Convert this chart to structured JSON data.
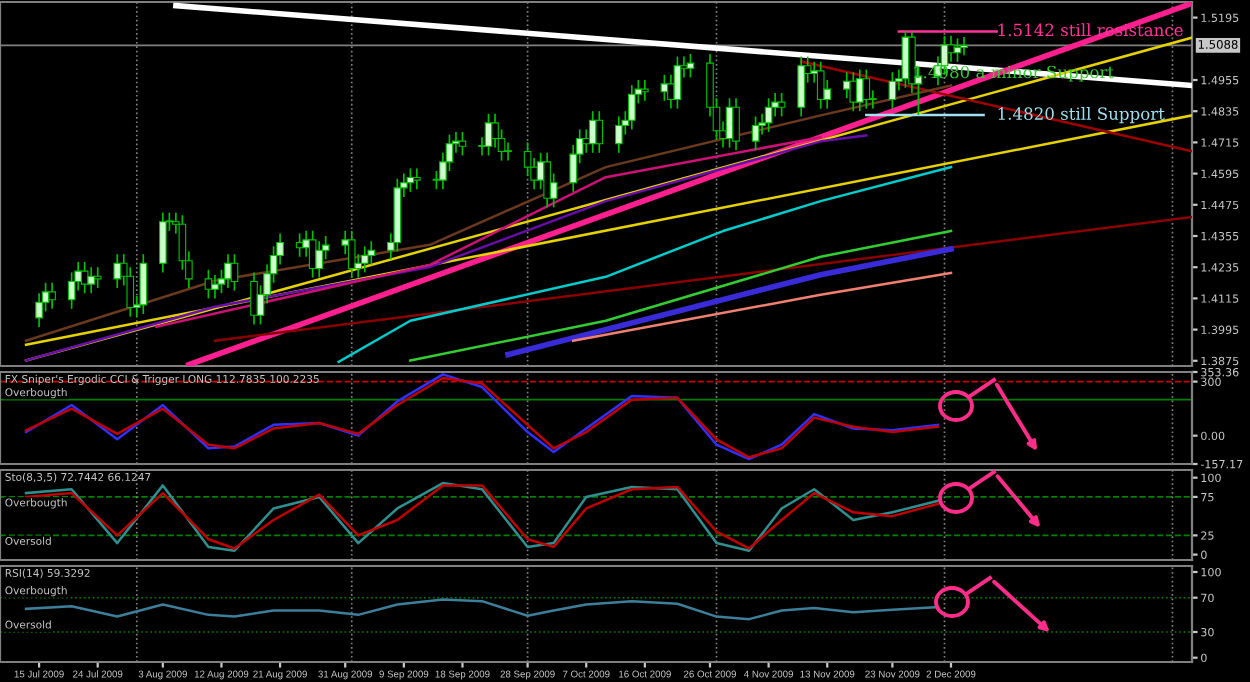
{
  "chart_data": [
    {
      "type": "candlestick",
      "xlim": [
        "2009-07-09",
        "2010-01-08"
      ],
      "ylim": [
        1.3855,
        1.5255
      ],
      "tick_labels": "y",
      "yticks": [
        1.3875,
        1.3995,
        1.4115,
        1.4235,
        1.4355,
        1.4475,
        1.4595,
        1.4715,
        1.4835,
        1.4955,
        1.5195
      ],
      "color": "#00c000",
      "x": [
        "2009-07-15",
        "2009-07-16",
        "2009-07-17",
        "2009-07-20",
        "2009-07-21",
        "2009-07-22",
        "2009-07-23",
        "2009-07-24",
        "2009-07-27",
        "2009-07-28",
        "2009-07-29",
        "2009-07-30",
        "2009-07-31",
        "2009-08-03",
        "2009-08-04",
        "2009-08-05",
        "2009-08-06",
        "2009-08-07",
        "2009-08-10",
        "2009-08-11",
        "2009-08-12",
        "2009-08-13",
        "2009-08-14",
        "2009-08-17",
        "2009-08-18",
        "2009-08-19",
        "2009-08-20",
        "2009-08-21",
        "2009-08-24",
        "2009-08-25",
        "2009-08-26",
        "2009-08-27",
        "2009-08-28",
        "2009-08-31",
        "2009-09-01",
        "2009-09-02",
        "2009-09-03",
        "2009-09-04",
        "2009-09-07",
        "2009-09-08",
        "2009-09-09",
        "2009-09-10",
        "2009-09-11",
        "2009-09-14",
        "2009-09-15",
        "2009-09-16",
        "2009-09-17",
        "2009-09-18",
        "2009-09-21",
        "2009-09-22",
        "2009-09-23",
        "2009-09-24",
        "2009-09-25",
        "2009-09-28",
        "2009-09-29",
        "2009-09-30",
        "2009-10-01",
        "2009-10-02",
        "2009-10-05",
        "2009-10-06",
        "2009-10-07",
        "2009-10-08",
        "2009-10-09",
        "2009-10-12",
        "2009-10-13",
        "2009-10-14",
        "2009-10-15",
        "2009-10-16",
        "2009-10-19",
        "2009-10-20",
        "2009-10-21",
        "2009-10-22",
        "2009-10-23",
        "2009-10-26",
        "2009-10-27",
        "2009-10-28",
        "2009-10-29",
        "2009-10-30",
        "2009-11-02",
        "2009-11-03",
        "2009-11-04",
        "2009-11-05",
        "2009-11-06",
        "2009-11-09",
        "2009-11-10",
        "2009-11-11",
        "2009-11-12",
        "2009-11-13",
        "2009-11-16",
        "2009-11-17",
        "2009-11-18",
        "2009-11-19",
        "2009-11-20",
        "2009-11-23",
        "2009-11-24",
        "2009-11-25",
        "2009-11-26",
        "2009-11-27",
        "2009-11-30",
        "2009-12-01",
        "2009-12-02",
        "2009-12-03",
        "2009-12-04"
      ],
      "ohlc": [
        [
          1.404,
          1.4135,
          1.4005,
          1.41
        ],
        [
          1.41,
          1.4175,
          1.4065,
          1.414
        ],
        [
          1.414,
          1.4175,
          1.4075,
          1.411
        ],
        [
          1.411,
          1.4215,
          1.4075,
          1.418
        ],
        [
          1.418,
          1.4255,
          1.4145,
          1.422
        ],
        [
          1.422,
          1.4255,
          1.4135,
          1.417
        ],
        [
          1.417,
          1.4235,
          1.4135,
          1.42
        ],
        [
          1.42,
          1.4235,
          1.4155,
          1.419
        ],
        [
          1.419,
          1.4285,
          1.4155,
          1.425
        ],
        [
          1.425,
          1.4285,
          1.4165,
          1.42
        ],
        [
          1.42,
          1.4235,
          1.4045,
          1.408
        ],
        [
          1.408,
          1.4125,
          1.4045,
          1.409
        ],
        [
          1.409,
          1.4285,
          1.4055,
          1.425
        ],
        [
          1.425,
          1.4445,
          1.4215,
          1.441
        ],
        [
          1.441,
          1.4445,
          1.4375,
          1.441
        ],
        [
          1.441,
          1.4445,
          1.4365,
          1.44
        ],
        [
          1.44,
          1.4435,
          1.4225,
          1.426
        ],
        [
          1.426,
          1.4295,
          1.4155,
          1.419
        ],
        [
          1.419,
          1.4225,
          1.4115,
          1.415
        ],
        [
          1.415,
          1.4205,
          1.4115,
          1.417
        ],
        [
          1.417,
          1.4225,
          1.4135,
          1.419
        ],
        [
          1.419,
          1.4285,
          1.4155,
          1.425
        ],
        [
          1.425,
          1.4285,
          1.4145,
          1.418
        ],
        [
          1.418,
          1.4215,
          1.4015,
          1.405
        ],
        [
          1.405,
          1.4165,
          1.4015,
          1.413
        ],
        [
          1.413,
          1.4245,
          1.4095,
          1.421
        ],
        [
          1.421,
          1.4315,
          1.4175,
          1.428
        ],
        [
          1.428,
          1.4365,
          1.4245,
          1.433
        ],
        [
          1.433,
          1.4365,
          1.4275,
          1.431
        ],
        [
          1.431,
          1.4375,
          1.4275,
          1.434
        ],
        [
          1.434,
          1.4375,
          1.4195,
          1.423
        ],
        [
          1.423,
          1.4335,
          1.4195,
          1.43
        ],
        [
          1.43,
          1.4355,
          1.4265,
          1.432
        ],
        [
          1.432,
          1.4375,
          1.4285,
          1.434
        ],
        [
          1.434,
          1.4375,
          1.4195,
          1.423
        ],
        [
          1.423,
          1.4285,
          1.4195,
          1.425
        ],
        [
          1.425,
          1.4315,
          1.4215,
          1.428
        ],
        [
          1.428,
          1.4335,
          1.4245,
          1.43
        ],
        [
          1.43,
          1.4365,
          1.4265,
          1.433
        ],
        [
          1.433,
          1.4575,
          1.4295,
          1.454
        ],
        [
          1.454,
          1.4595,
          1.4505,
          1.456
        ],
        [
          1.456,
          1.4615,
          1.4525,
          1.458
        ],
        [
          1.458,
          1.4615,
          1.4535,
          1.457
        ],
        [
          1.457,
          1.4605,
          1.4535,
          1.457
        ],
        [
          1.457,
          1.4675,
          1.4535,
          1.464
        ],
        [
          1.464,
          1.4745,
          1.4605,
          1.471
        ],
        [
          1.471,
          1.4755,
          1.4675,
          1.472
        ],
        [
          1.472,
          1.4755,
          1.4665,
          1.47
        ],
        [
          1.47,
          1.4735,
          1.4665,
          1.47
        ],
        [
          1.47,
          1.4825,
          1.4665,
          1.479
        ],
        [
          1.479,
          1.4825,
          1.4695,
          1.473
        ],
        [
          1.473,
          1.4765,
          1.4645,
          1.468
        ],
        [
          1.468,
          1.4715,
          1.4645,
          1.468
        ],
        [
          1.468,
          1.4715,
          1.4585,
          1.462
        ],
        [
          1.462,
          1.4655,
          1.4535,
          1.457
        ],
        [
          1.457,
          1.4675,
          1.4535,
          1.464
        ],
        [
          1.464,
          1.4675,
          1.4465,
          1.45
        ],
        [
          1.45,
          1.4595,
          1.4465,
          1.456
        ],
        [
          1.456,
          1.4705,
          1.4525,
          1.467
        ],
        [
          1.467,
          1.4765,
          1.4635,
          1.473
        ],
        [
          1.473,
          1.4765,
          1.4675,
          1.471
        ],
        [
          1.471,
          1.4835,
          1.4675,
          1.48
        ],
        [
          1.48,
          1.4835,
          1.4675,
          1.471
        ],
        [
          1.471,
          1.4815,
          1.4675,
          1.478
        ],
        [
          1.478,
          1.4835,
          1.4745,
          1.48
        ],
        [
          1.48,
          1.4935,
          1.4765,
          1.49
        ],
        [
          1.49,
          1.4955,
          1.4865,
          1.492
        ],
        [
          1.492,
          1.4955,
          1.4875,
          1.491
        ],
        [
          1.491,
          1.4975,
          1.4875,
          1.494
        ],
        [
          1.494,
          1.4975,
          1.4845,
          1.488
        ],
        [
          1.488,
          1.5045,
          1.4845,
          1.501
        ],
        [
          1.501,
          1.5045,
          1.4965,
          1.5
        ],
        [
          1.5,
          1.5055,
          1.4965,
          1.502
        ],
        [
          1.502,
          1.5055,
          1.4815,
          1.485
        ],
        [
          1.485,
          1.4885,
          1.4725,
          1.476
        ],
        [
          1.476,
          1.4795,
          1.4695,
          1.473
        ],
        [
          1.473,
          1.4885,
          1.4695,
          1.485
        ],
        [
          1.485,
          1.4885,
          1.4685,
          1.472
        ],
        [
          1.472,
          1.4815,
          1.4685,
          1.478
        ],
        [
          1.478,
          1.4825,
          1.4745,
          1.479
        ],
        [
          1.479,
          1.4885,
          1.4755,
          1.485
        ],
        [
          1.485,
          1.4905,
          1.4815,
          1.487
        ],
        [
          1.487,
          1.4905,
          1.4815,
          1.485
        ],
        [
          1.485,
          1.5045,
          1.4815,
          1.501
        ],
        [
          1.501,
          1.5045,
          1.4945,
          1.498
        ],
        [
          1.498,
          1.5025,
          1.4945,
          1.499
        ],
        [
          1.499,
          1.5025,
          1.4845,
          1.488
        ],
        [
          1.488,
          1.4955,
          1.4845,
          1.492
        ],
        [
          1.492,
          1.4985,
          1.4885,
          1.495
        ],
        [
          1.495,
          1.4985,
          1.4835,
          1.487
        ],
        [
          1.487,
          1.4995,
          1.4835,
          1.496
        ],
        [
          1.496,
          1.4995,
          1.4845,
          1.488
        ],
        [
          1.488,
          1.4915,
          1.4845,
          1.488
        ],
        [
          1.488,
          1.4985,
          1.4845,
          1.495
        ],
        [
          1.495,
          1.4995,
          1.4915,
          1.496
        ],
        [
          1.496,
          1.5142,
          1.4925,
          1.512
        ],
        [
          1.512,
          1.5142,
          1.4905,
          1.494
        ],
        [
          1.494,
          1.5005,
          1.482,
          1.497
        ],
        [
          1.497,
          1.5045,
          1.4935,
          1.501
        ],
        [
          1.501,
          1.5125,
          1.4975,
          1.509
        ],
        [
          1.509,
          1.5125,
          1.5025,
          1.506
        ],
        [
          1.506,
          1.5115,
          1.5025,
          1.508
        ],
        [
          1.508,
          1.512,
          1.505,
          1.5088
        ]
      ],
      "series": [
        {
          "type": "line",
          "color": "#ffffff",
          "x": [
            "2009-08-05",
            "2010-01-08"
          ],
          "values": [
            1.5241,
            1.4934
          ]
        },
        {
          "type": "line",
          "color": "#ff1f8f",
          "x": [
            "2009-08-07",
            "2010-01-08"
          ],
          "values": [
            1.386,
            1.525
          ]
        },
        {
          "type": "line",
          "color": "#e6d200",
          "x": [
            "2009-07-13",
            "2010-01-08"
          ],
          "values": [
            1.3876,
            1.5118
          ]
        },
        {
          "type": "line",
          "color": "#e6d200",
          "x": [
            "2009-07-13",
            "2010-01-08"
          ],
          "values": [
            1.3937,
            1.4819
          ]
        },
        {
          "type": "line",
          "color": "#8b0000",
          "x": [
            "2009-08-11",
            "2010-01-08"
          ],
          "values": [
            1.3952,
            1.4428
          ]
        },
        {
          "type": "line",
          "color": "#a00000",
          "x": [
            "2009-11-09",
            "2010-01-08"
          ],
          "values": [
            1.5026,
            1.4681
          ]
        },
        {
          "type": "line",
          "color": "#00cccc",
          "x": [
            "2009-08-30",
            "2009-09-10",
            "2009-10-10",
            "2009-10-28",
            "2009-11-12",
            "2009-12-02"
          ],
          "values": [
            1.3871,
            1.4029,
            1.4198,
            1.4374,
            1.4489,
            1.462
          ]
        },
        {
          "type": "line",
          "color": "#33cc33",
          "x": [
            "2009-09-10",
            "2009-10-10",
            "2009-11-12",
            "2009-12-02"
          ],
          "values": [
            1.3876,
            1.4029,
            1.4275,
            1.4374
          ]
        },
        {
          "type": "line",
          "color": "#3a2bd8",
          "x": [
            "2009-09-25",
            "2009-11-12",
            "2009-12-02"
          ],
          "values": [
            1.3899,
            1.4206,
            1.4305
          ]
        },
        {
          "type": "line",
          "color": "#f08070",
          "x": [
            "2009-10-05",
            "2009-11-12",
            "2009-12-02"
          ],
          "values": [
            1.3952,
            1.4129,
            1.4213
          ]
        },
        {
          "type": "line",
          "color": "#6b3a1e",
          "x": [
            "2009-07-13",
            "2009-08-11",
            "2009-09-13",
            "2009-10-10",
            "2009-11-12",
            "2009-12-02"
          ],
          "values": [
            1.3952,
            1.4183,
            1.4321,
            1.462,
            1.4819,
            1.4934
          ]
        },
        {
          "type": "line",
          "color": "#6a0dad",
          "x": [
            "2009-07-13",
            "2009-08-11",
            "2009-09-13",
            "2009-10-10",
            "2009-11-12",
            "2009-11-19"
          ],
          "values": [
            1.3876,
            1.4083,
            1.4236,
            1.4489,
            1.4719,
            1.4742
          ]
        },
        {
          "type": "line",
          "color": "#cc1177",
          "x": [
            "2009-08-02",
            "2009-09-13",
            "2009-10-10",
            "2009-11-12"
          ],
          "values": [
            1.4006,
            1.4244,
            1.4581,
            1.4735
          ]
        },
        {
          "type": "line",
          "color": "#ff3399",
          "x": [
            "2009-11-24",
            "2009-12-09"
          ],
          "values": [
            1.5142,
            1.5142
          ]
        },
        {
          "type": "line",
          "color": "#a0e0f0",
          "x": [
            "2009-11-19",
            "2009-12-07"
          ],
          "values": [
            1.482,
            1.482
          ]
        }
      ],
      "annotations": [
        {
          "text": "1.5142 still resistance",
          "x": "2009-12-09",
          "y": 1.5142
        },
        {
          "text": "1.4980 a minor Support",
          "x": "2009-11-26",
          "y": 1.498
        },
        {
          "text": "1.4820 still Support",
          "x": "2009-12-09",
          "y": 1.482
        }
      ],
      "ref_lines": [
        {
          "axis": "y",
          "value": 1.5088,
          "label": "1.5088",
          "color": "#808080",
          "line_style": "solid"
        },
        {
          "axis": "x",
          "value": "2009-07-30",
          "color": "#808080",
          "line_style": "dotted"
        },
        {
          "axis": "x",
          "value": "2009-09-01",
          "color": "#808080",
          "line_style": "dotted"
        },
        {
          "axis": "x",
          "value": "2009-09-28",
          "color": "#808080",
          "line_style": "dotted"
        },
        {
          "axis": "x",
          "value": "2009-10-27",
          "color": "#808080",
          "line_style": "dotted"
        },
        {
          "axis": "x",
          "value": "2009-12-01",
          "color": "#808080",
          "line_style": "dotted"
        },
        {
          "axis": "x",
          "value": "2010-01-05",
          "color": "#808080",
          "line_style": "dotted"
        }
      ]
    },
    {
      "type": "line",
      "title": "FX Sniper's Ergodic CCI & Trigger LONG 112.7835 100.2235",
      "xlim": [
        "2009-07-09",
        "2010-01-08"
      ],
      "ylim": [
        -157.17,
        353.36
      ],
      "tick_labels": "y",
      "yticks": [
        {
          "value": 353.36,
          "label": "353.36"
        },
        300,
        {
          "value": 0,
          "label": "0.00"
        },
        {
          "value": -157.17,
          "label": "-157.17"
        }
      ],
      "x": [
        "2009-07-13",
        "2009-07-20",
        "2009-07-27",
        "2009-08-03",
        "2009-08-10",
        "2009-08-14",
        "2009-08-20",
        "2009-08-27",
        "2009-09-02",
        "2009-09-08",
        "2009-09-15",
        "2009-09-21",
        "2009-09-28",
        "2009-10-02",
        "2009-10-07",
        "2009-10-14",
        "2009-10-21",
        "2009-10-27",
        "2009-11-01",
        "2009-11-06",
        "2009-11-11",
        "2009-11-17",
        "2009-11-23",
        "2009-11-30"
      ],
      "series": [
        {
          "color": "#3030ff",
          "values": [
            20,
            170,
            -20,
            170,
            -70,
            -60,
            60,
            70,
            0,
            190,
            340,
            270,
            20,
            -90,
            40,
            220,
            210,
            -50,
            -130,
            -50,
            120,
            40,
            30,
            60
          ]
        },
        {
          "color": "#c00000",
          "values": [
            30,
            150,
            10,
            150,
            -50,
            -70,
            40,
            70,
            10,
            170,
            320,
            290,
            60,
            -70,
            20,
            200,
            210,
            -20,
            -120,
            -70,
            100,
            50,
            20,
            50
          ]
        }
      ],
      "ref_lines": [
        {
          "axis": "y",
          "value": 300,
          "color": "#cc0000",
          "line_style": "dashed"
        },
        {
          "axis": "y",
          "value": 200,
          "color": "#008000",
          "line_style": "solid",
          "label": "Overbougth"
        },
        {
          "axis": "x",
          "value": "2009-07-30",
          "color": "#808080",
          "line_style": "dotted"
        },
        {
          "axis": "x",
          "value": "2009-09-01",
          "color": "#808080",
          "line_style": "dotted"
        },
        {
          "axis": "x",
          "value": "2009-09-28",
          "color": "#808080",
          "line_style": "dotted"
        },
        {
          "axis": "x",
          "value": "2009-10-27",
          "color": "#808080",
          "line_style": "dotted"
        },
        {
          "axis": "x",
          "value": "2009-12-01",
          "color": "#808080",
          "line_style": "dotted"
        },
        {
          "axis": "x",
          "value": "2010-01-05",
          "color": "#808080",
          "line_style": "dotted"
        }
      ]
    },
    {
      "type": "line",
      "title": "Sto(8,3,5) 72.7442 66.1247",
      "xlim": [
        "2009-07-09",
        "2010-01-08"
      ],
      "ylim": [
        -7,
        110
      ],
      "tick_labels": "y",
      "yticks": [
        0,
        25,
        75,
        100
      ],
      "x": [
        "2009-07-13",
        "2009-07-20",
        "2009-07-27",
        "2009-08-03",
        "2009-08-10",
        "2009-08-14",
        "2009-08-20",
        "2009-08-27",
        "2009-09-02",
        "2009-09-08",
        "2009-09-15",
        "2009-09-21",
        "2009-09-28",
        "2009-10-02",
        "2009-10-07",
        "2009-10-14",
        "2009-10-21",
        "2009-10-27",
        "2009-11-01",
        "2009-11-06",
        "2009-11-11",
        "2009-11-17",
        "2009-11-23",
        "2009-11-30"
      ],
      "series": [
        {
          "color": "#2f8f8f",
          "values": [
            80,
            85,
            15,
            90,
            10,
            5,
            60,
            75,
            15,
            60,
            93,
            85,
            10,
            15,
            75,
            88,
            85,
            15,
            5,
            60,
            85,
            45,
            55,
            70
          ]
        },
        {
          "color": "#c00000",
          "values": [
            75,
            80,
            25,
            80,
            20,
            8,
            45,
            78,
            25,
            45,
            90,
            90,
            20,
            10,
            60,
            85,
            88,
            30,
            8,
            45,
            80,
            55,
            50,
            66
          ]
        }
      ],
      "ref_lines": [
        {
          "axis": "y",
          "value": 75,
          "color": "#008000",
          "line_style": "dashed",
          "label": "Overbougth"
        },
        {
          "axis": "y",
          "value": 25,
          "color": "#008000",
          "line_style": "dashed",
          "label": "Oversold"
        },
        {
          "axis": "x",
          "value": "2009-07-30",
          "color": "#808080",
          "line_style": "dotted"
        },
        {
          "axis": "x",
          "value": "2009-09-01",
          "color": "#808080",
          "line_style": "dotted"
        },
        {
          "axis": "x",
          "value": "2009-09-28",
          "color": "#808080",
          "line_style": "dotted"
        },
        {
          "axis": "x",
          "value": "2009-10-27",
          "color": "#808080",
          "line_style": "dotted"
        },
        {
          "axis": "x",
          "value": "2009-12-01",
          "color": "#808080",
          "line_style": "dotted"
        },
        {
          "axis": "x",
          "value": "2010-01-05",
          "color": "#808080",
          "line_style": "dotted"
        }
      ]
    },
    {
      "type": "line",
      "title": "RSI(14) 59.3292",
      "xlim": [
        "2009-07-09",
        "2010-01-08"
      ],
      "ylim": [
        -5,
        107
      ],
      "yticks": [
        0,
        30,
        70,
        100
      ],
      "xticks": [
        {
          "value": "2009-07-15",
          "label": "15 Jul 2009"
        },
        {
          "value": "2009-07-24",
          "label": "24 Jul 2009"
        },
        {
          "value": "2009-08-03",
          "label": "3 Aug 2009"
        },
        {
          "value": "2009-08-12",
          "label": "12 Aug 2009"
        },
        {
          "value": "2009-08-21",
          "label": "21 Aug 2009"
        },
        {
          "value": "2009-08-31",
          "label": "31 Aug 2009"
        },
        {
          "value": "2009-09-09",
          "label": "9 Sep 2009"
        },
        {
          "value": "2009-09-18",
          "label": "18 Sep 2009"
        },
        {
          "value": "2009-09-28",
          "label": "28 Sep 2009"
        },
        {
          "value": "2009-10-07",
          "label": "7 Oct 2009"
        },
        {
          "value": "2009-10-16",
          "label": "16 Oct 2009"
        },
        {
          "value": "2009-10-26",
          "label": "26 Oct 2009"
        },
        {
          "value": "2009-11-04",
          "label": "4 Nov 2009"
        },
        {
          "value": "2009-11-13",
          "label": "13 Nov 2009"
        },
        {
          "value": "2009-11-23",
          "label": "23 Nov 2009"
        },
        {
          "value": "2009-12-02",
          "label": "2 Dec 2009"
        }
      ],
      "x": [
        "2009-07-13",
        "2009-07-20",
        "2009-07-27",
        "2009-08-03",
        "2009-08-10",
        "2009-08-14",
        "2009-08-20",
        "2009-08-27",
        "2009-09-02",
        "2009-09-08",
        "2009-09-15",
        "2009-09-21",
        "2009-09-28",
        "2009-10-02",
        "2009-10-07",
        "2009-10-14",
        "2009-10-21",
        "2009-10-27",
        "2009-11-01",
        "2009-11-06",
        "2009-11-11",
        "2009-11-17",
        "2009-11-23",
        "2009-11-30"
      ],
      "series": [
        {
          "color": "#3d7e9a",
          "values": [
            57,
            60,
            48,
            62,
            50,
            48,
            55,
            55,
            50,
            62,
            68,
            66,
            49,
            55,
            62,
            66,
            63,
            48,
            45,
            55,
            58,
            53,
            56,
            59
          ]
        }
      ],
      "ref_lines": [
        {
          "axis": "y",
          "value": 70,
          "color": "#008000",
          "line_style": "dotted",
          "label": "Overbougth"
        },
        {
          "axis": "y",
          "value": 30,
          "color": "#008000",
          "line_style": "dotted",
          "label": "Oversold"
        },
        {
          "axis": "x",
          "value": "2009-07-30",
          "color": "#808080",
          "line_style": "dotted"
        },
        {
          "axis": "x",
          "value": "2009-09-01",
          "color": "#808080",
          "line_style": "dotted"
        },
        {
          "axis": "x",
          "value": "2009-09-28",
          "color": "#808080",
          "line_style": "dotted"
        },
        {
          "axis": "x",
          "value": "2009-10-27",
          "color": "#808080",
          "line_style": "dotted"
        },
        {
          "axis": "x",
          "value": "2009-12-01",
          "color": "#808080",
          "line_style": "dotted"
        },
        {
          "axis": "x",
          "value": "2010-01-05",
          "color": "#808080",
          "line_style": "dotted"
        }
      ]
    }
  ]
}
